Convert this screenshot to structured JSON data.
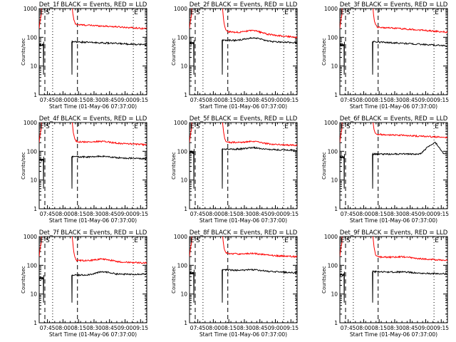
{
  "chart_data": [
    {
      "type": "line",
      "title": "Det_1f BLACK = Events, RED = LLD",
      "xlabel": "Start Time (01-May-06 07:37:00)",
      "ylabel": "Counts/sec",
      "x_ticks": [
        "07:45",
        "08:00",
        "08:15",
        "08:30",
        "08:45",
        "09:00",
        "09:15"
      ],
      "y_ticks": [
        "1",
        "10",
        "100",
        "1000"
      ],
      "x_unit": "minutes after 07:37:00",
      "xlim": [
        0,
        104
      ],
      "ylim": [
        1,
        1000
      ],
      "log_y": true,
      "markers": {
        "E_left": "E",
        "S": "S",
        "E_right": "E"
      },
      "series": [
        {
          "name": "RED = LLD",
          "color": "#ff0000",
          "base": 280,
          "end": 200,
          "hump": 0
        },
        {
          "name": "BLACK = Events",
          "color": "#000000",
          "base": 70,
          "end": 55,
          "hump": 0
        }
      ]
    },
    {
      "type": "line",
      "title": "Det_2f BLACK = Events, RED = LLD",
      "xlabel": "Start Time (01-May-06 07:37:00)",
      "ylabel": "Counts/sec",
      "x_ticks": [
        "07:45",
        "08:00",
        "08:15",
        "08:30",
        "08:45",
        "09:00",
        "09:15"
      ],
      "y_ticks": [
        "1",
        "10",
        "100",
        "1000"
      ],
      "x_unit": "minutes after 07:37:00",
      "xlim": [
        0,
        104
      ],
      "ylim": [
        1,
        1000
      ],
      "log_y": true,
      "markers": {
        "E_left": "E",
        "S": "S",
        "E_right": "E"
      },
      "series": [
        {
          "name": "RED = LLD",
          "color": "#ff0000",
          "base": 160,
          "end": 100,
          "hump": 0.25
        },
        {
          "name": "BLACK = Events",
          "color": "#000000",
          "base": 80,
          "end": 65,
          "hump": 0.3
        }
      ]
    },
    {
      "type": "line",
      "title": "Det_3f BLACK = Events, RED = LLD",
      "xlabel": "Start Time (01-May-06 07:37:00)",
      "ylabel": "Counts/sec",
      "x_ticks": [
        "07:45",
        "08:00",
        "08:15",
        "08:30",
        "08:45",
        "09:00",
        "09:15"
      ],
      "y_ticks": [
        "1",
        "10",
        "100",
        "1000"
      ],
      "x_unit": "minutes after 07:37:00",
      "xlim": [
        0,
        104
      ],
      "ylim": [
        1,
        1000
      ],
      "log_y": true,
      "markers": {
        "E_left": "E",
        "S": "S",
        "E_right": "E"
      },
      "series": [
        {
          "name": "RED = LLD",
          "color": "#ff0000",
          "base": 230,
          "end": 150,
          "hump": 0
        },
        {
          "name": "BLACK = Events",
          "color": "#000000",
          "base": 70,
          "end": 50,
          "hump": 0
        }
      ]
    },
    {
      "type": "line",
      "title": "Det_4f BLACK = Events, RED = LLD",
      "xlabel": "Start Time (01-May-06 07:37:00)",
      "ylabel": "Counts/sec",
      "x_ticks": [
        "07:45",
        "08:00",
        "08:15",
        "08:30",
        "08:45",
        "09:00",
        "09:15"
      ],
      "y_ticks": [
        "1",
        "10",
        "100",
        "1000"
      ],
      "x_unit": "minutes after 07:37:00",
      "xlim": [
        0,
        104
      ],
      "ylim": [
        1,
        1000
      ],
      "log_y": true,
      "markers": {
        "E_left": "E",
        "S": "S",
        "E_right": "E"
      },
      "series": [
        {
          "name": "RED = LLD",
          "color": "#ff0000",
          "base": 220,
          "end": 170,
          "hump": 0.1
        },
        {
          "name": "BLACK = Events",
          "color": "#000000",
          "base": 65,
          "end": 55,
          "hump": 0.1
        }
      ]
    },
    {
      "type": "line",
      "title": "Det_5f BLACK = Events, RED = LLD",
      "xlabel": "Start Time (01-May-06 07:37:00)",
      "ylabel": "Counts/sec",
      "x_ticks": [
        "07:45",
        "08:00",
        "08:15",
        "08:30",
        "08:45",
        "09:00",
        "09:15"
      ],
      "y_ticks": [
        "1",
        "10",
        "100",
        "1000"
      ],
      "x_unit": "minutes after 07:37:00",
      "xlim": [
        0,
        104
      ],
      "ylim": [
        1,
        1000
      ],
      "log_y": true,
      "markers": {
        "E_left": "E",
        "S": "S",
        "E_right": "E"
      },
      "series": [
        {
          "name": "RED = LLD",
          "color": "#ff0000",
          "base": 210,
          "end": 160,
          "hump": 0.15
        },
        {
          "name": "BLACK = Events",
          "color": "#000000",
          "base": 120,
          "end": 110,
          "hump": 0.15
        }
      ]
    },
    {
      "type": "line",
      "title": "Det_6f BLACK = Events, RED = LLD",
      "xlabel": "Start Time (01-May-06 07:37:00)",
      "ylabel": "Counts/sec",
      "x_ticks": [
        "07:45",
        "08:00",
        "08:15",
        "08:30",
        "08:45",
        "09:00",
        "09:15"
      ],
      "y_ticks": [
        "1",
        "10",
        "100",
        "1000"
      ],
      "x_unit": "minutes after 07:37:00",
      "xlim": [
        0,
        104
      ],
      "ylim": [
        1,
        1000
      ],
      "log_y": true,
      "markers": {
        "E_left": "E",
        "S": "S",
        "E_right": "E"
      },
      "series": [
        {
          "name": "RED = LLD",
          "color": "#ff0000",
          "base": 400,
          "end": 300,
          "hump": 0
        },
        {
          "name": "BLACK = Events",
          "color": "#000000",
          "base": 80,
          "end": 80,
          "hump": 0,
          "bump": [
            78,
            92,
            200
          ]
        }
      ]
    },
    {
      "type": "line",
      "title": "Det_7f BLACK = Events, RED = LLD",
      "xlabel": "Start Time (01-May-06 07:37:00)",
      "ylabel": "Counts/sec",
      "x_ticks": [
        "07:45",
        "08:00",
        "08:15",
        "08:30",
        "08:45",
        "09:00",
        "09:15"
      ],
      "y_ticks": [
        "1",
        "10",
        "100",
        "1000"
      ],
      "x_unit": "minutes after 07:37:00",
      "xlim": [
        0,
        104
      ],
      "ylim": [
        1,
        1000
      ],
      "log_y": true,
      "markers": {
        "E_left": "E",
        "S": "S",
        "E_right": "E"
      },
      "series": [
        {
          "name": "RED = LLD",
          "color": "#ff0000",
          "base": 150,
          "end": 120,
          "hump": 0.2
        },
        {
          "name": "BLACK = Events",
          "color": "#000000",
          "base": 45,
          "end": 50,
          "hump": 0.25
        }
      ]
    },
    {
      "type": "line",
      "title": "Det_8f BLACK = Events, RED = LLD",
      "xlabel": "Start Time (01-May-06 07:37:00)",
      "ylabel": "Counts/sec",
      "x_ticks": [
        "07:45",
        "08:00",
        "08:15",
        "08:30",
        "08:45",
        "09:00",
        "09:15"
      ],
      "y_ticks": [
        "1",
        "10",
        "100",
        "1000"
      ],
      "x_unit": "minutes after 07:37:00",
      "xlim": [
        0,
        104
      ],
      "ylim": [
        1,
        1000
      ],
      "log_y": true,
      "markers": {
        "E_left": "E",
        "S": "S",
        "E_right": "E"
      },
      "series": [
        {
          "name": "RED = LLD",
          "color": "#ff0000",
          "base": 260,
          "end": 200,
          "hump": 0.1
        },
        {
          "name": "BLACK = Events",
          "color": "#000000",
          "base": 70,
          "end": 55,
          "hump": 0.1
        }
      ]
    },
    {
      "type": "line",
      "title": "Det_9f BLACK = Events, RED = LLD",
      "xlabel": "Start Time (01-May-06 07:37:00)",
      "ylabel": "Counts/sec",
      "x_ticks": [
        "07:45",
        "08:00",
        "08:15",
        "08:30",
        "08:45",
        "09:00",
        "09:15"
      ],
      "y_ticks": [
        "1",
        "10",
        "100",
        "1000"
      ],
      "x_unit": "minutes after 07:37:00",
      "xlim": [
        0,
        104
      ],
      "ylim": [
        1,
        1000
      ],
      "log_y": true,
      "markers": {
        "E_left": "E",
        "S": "S",
        "E_right": "E"
      },
      "series": [
        {
          "name": "RED = LLD",
          "color": "#ff0000",
          "base": 200,
          "end": 150,
          "hump": 0.1
        },
        {
          "name": "BLACK = Events",
          "color": "#000000",
          "base": 60,
          "end": 50,
          "hump": 0.05
        }
      ]
    }
  ]
}
